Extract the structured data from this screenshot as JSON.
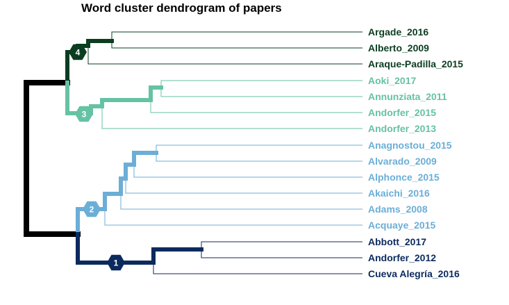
{
  "title": "Word cluster dendrogram of papers",
  "colors": {
    "root": "#000000",
    "cluster_1": "#0b2a5e",
    "cluster_2": "#6baed6",
    "cluster_3": "#66c2a4",
    "cluster_4": "#0b3d20"
  },
  "leaves": [
    {
      "label": "Argade_2016",
      "cluster": "cluster_4"
    },
    {
      "label": "Alberto_2009",
      "cluster": "cluster_4"
    },
    {
      "label": "Araque-Padilla_2015",
      "cluster": "cluster_4"
    },
    {
      "label": "Aoki_2017",
      "cluster": "cluster_3"
    },
    {
      "label": "Annunziata_2011",
      "cluster": "cluster_3"
    },
    {
      "label": "Andorfer_2015",
      "cluster": "cluster_3"
    },
    {
      "label": "Andorfer_2013",
      "cluster": "cluster_3"
    },
    {
      "label": "Anagnostou_2015",
      "cluster": "cluster_2"
    },
    {
      "label": "Alvarado_2009",
      "cluster": "cluster_2"
    },
    {
      "label": "Alphonce_2015",
      "cluster": "cluster_2"
    },
    {
      "label": "Akaichi_2016",
      "cluster": "cluster_2"
    },
    {
      "label": "Adams_2008",
      "cluster": "cluster_2"
    },
    {
      "label": "Acquaye_2015",
      "cluster": "cluster_2"
    },
    {
      "label": "Abbott_2017",
      "cluster": "cluster_1"
    },
    {
      "label": "Andorfer_2012",
      "cluster": "cluster_1"
    },
    {
      "label": "Cueva Alegría_2016",
      "cluster": "cluster_1"
    }
  ],
  "cluster_badges": [
    {
      "number": "4",
      "cluster": "cluster_4"
    },
    {
      "number": "3",
      "cluster": "cluster_3"
    },
    {
      "number": "2",
      "cluster": "cluster_2"
    },
    {
      "number": "1",
      "cluster": "cluster_1"
    }
  ]
}
